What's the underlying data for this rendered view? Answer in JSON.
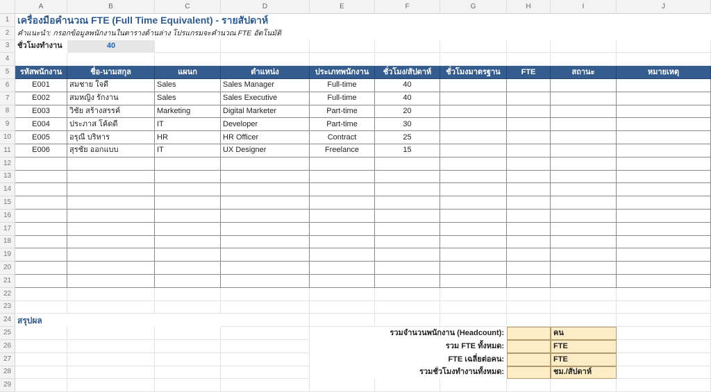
{
  "colors": {
    "header_fill": "#355c8e",
    "title": "#2e5a92",
    "input_fill": "#e6e6e6",
    "input_value": "#1f5fbf",
    "summary_fill": "#fdedc6"
  },
  "columns": [
    "A",
    "B",
    "C",
    "D",
    "E",
    "F",
    "G",
    "H",
    "I",
    "J"
  ],
  "title": "เครื่องมือคำนวณ FTE (Full Time Equivalent) - รายสัปดาห์",
  "instruction": "คำแนะนำ: กรอกข้อมูลพนักงานในตารางด้านล่าง โปรแกรมจะคำนวณ FTE อัตโนมัติ",
  "standard_hours": {
    "label": "ชั่วโมงทำงาน",
    "value": "40"
  },
  "table": {
    "headers": [
      "รหัสพนักงาน",
      "ชื่อ-นามสกุล",
      "แผนก",
      "ตำแหน่ง",
      "ประเภทพนักงาน",
      "ชั่วโมง/สัปดาห์",
      "ชั่วโมงมาตรฐาน",
      "FTE",
      "สถานะ",
      "หมายเหตุ"
    ],
    "rows": [
      [
        "E001",
        "สมชาย ใจดี",
        "Sales",
        "Sales Manager",
        "Full-time",
        "40",
        "",
        "",
        "",
        ""
      ],
      [
        "E002",
        "สมหญิง รักงาน",
        "Sales",
        "Sales Executive",
        "Full-time",
        "40",
        "",
        "",
        "",
        ""
      ],
      [
        "E003",
        "วิชัย สร้างสรรค์",
        "Marketing",
        "Digital Marketer",
        "Part-time",
        "20",
        "",
        "",
        "",
        ""
      ],
      [
        "E004",
        "ประภาส โค้ดดี",
        "IT",
        "Developer",
        "Part-time",
        "30",
        "",
        "",
        "",
        ""
      ],
      [
        "E005",
        "อรุณี บริหาร",
        "HR",
        "HR Officer",
        "Contract",
        "25",
        "",
        "",
        "",
        ""
      ],
      [
        "E006",
        "สุรชัย ออกแบบ",
        "IT",
        "UX Designer",
        "Freelance",
        "15",
        "",
        "",
        "",
        ""
      ]
    ]
  },
  "summary": {
    "title": "สรุปผล",
    "items": [
      {
        "label": "รวมจำนวนพนักงาน (Headcount):",
        "value": "",
        "unit": "คน"
      },
      {
        "label": "รวม FTE ทั้งหมด:",
        "value": "",
        "unit": "FTE"
      },
      {
        "label": "FTE เฉลี่ยต่อคน:",
        "value": "",
        "unit": "FTE"
      },
      {
        "label": "รวมชั่วโมงทำงานทั้งหมด:",
        "value": "",
        "unit": "ชม./สัปดาห์"
      }
    ]
  }
}
